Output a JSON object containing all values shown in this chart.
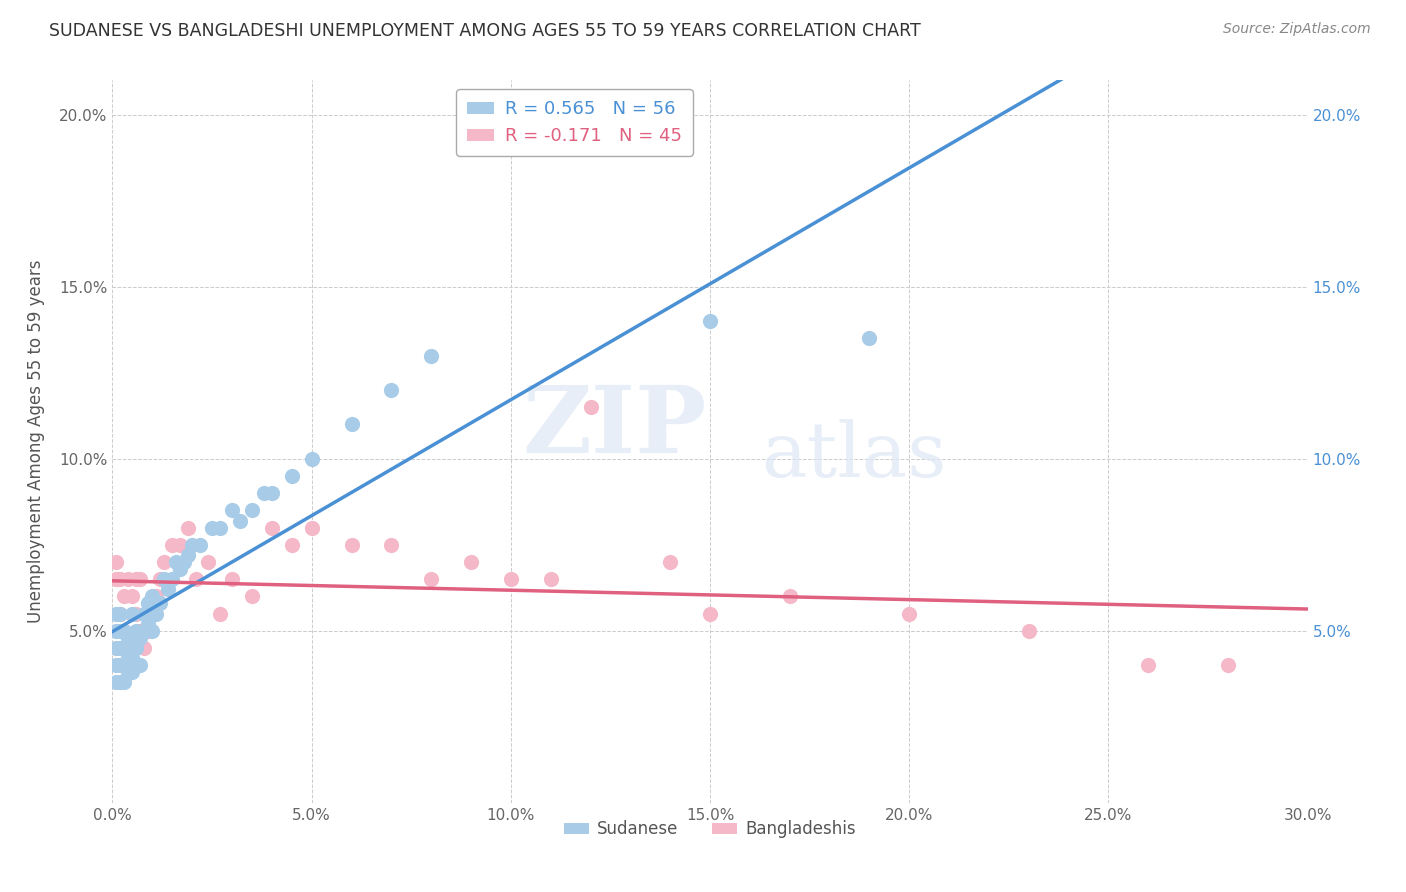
{
  "title": "SUDANESE VS BANGLADESHI UNEMPLOYMENT AMONG AGES 55 TO 59 YEARS CORRELATION CHART",
  "source": "Source: ZipAtlas.com",
  "ylabel": "Unemployment Among Ages 55 to 59 years",
  "xlim": [
    0.0,
    0.3
  ],
  "ylim": [
    0.0,
    0.21
  ],
  "xticks": [
    0.0,
    0.05,
    0.1,
    0.15,
    0.2,
    0.25,
    0.3
  ],
  "yticks": [
    0.0,
    0.05,
    0.1,
    0.15,
    0.2
  ],
  "xtick_labels": [
    "0.0%",
    "5.0%",
    "10.0%",
    "15.0%",
    "20.0%",
    "25.0%",
    "30.0%"
  ],
  "ytick_labels": [
    "",
    "5.0%",
    "10.0%",
    "15.0%",
    "20.0%"
  ],
  "sudanese_color": "#a8cce8",
  "bangladeshi_color": "#f5b8c8",
  "trend_sudanese_color": "#4a90d4",
  "trend_bangladeshi_color": "#e06080",
  "legend_sudanese_label": "Sudanese",
  "legend_bangladeshi_label": "Bangladeshis",
  "r_sudanese": 0.565,
  "n_sudanese": 56,
  "r_bangladeshi": -0.171,
  "n_bangladeshi": 45,
  "watermark_zip": "ZIP",
  "watermark_atlas": "atlas",
  "background_color": "#ffffff",
  "grid_color": "#cccccc",
  "sudanese_x": [
    0.001,
    0.001,
    0.001,
    0.001,
    0.001,
    0.002,
    0.002,
    0.002,
    0.002,
    0.002,
    0.003,
    0.003,
    0.003,
    0.003,
    0.004,
    0.004,
    0.004,
    0.005,
    0.005,
    0.005,
    0.006,
    0.006,
    0.006,
    0.007,
    0.007,
    0.008,
    0.008,
    0.009,
    0.009,
    0.01,
    0.01,
    0.011,
    0.012,
    0.013,
    0.014,
    0.015,
    0.016,
    0.017,
    0.018,
    0.019,
    0.02,
    0.022,
    0.025,
    0.027,
    0.03,
    0.032,
    0.035,
    0.038,
    0.04,
    0.045,
    0.05,
    0.06,
    0.07,
    0.08,
    0.15,
    0.19
  ],
  "sudanese_y": [
    0.035,
    0.04,
    0.045,
    0.05,
    0.055,
    0.035,
    0.04,
    0.045,
    0.05,
    0.055,
    0.035,
    0.04,
    0.045,
    0.05,
    0.038,
    0.042,
    0.048,
    0.038,
    0.042,
    0.055,
    0.04,
    0.045,
    0.05,
    0.04,
    0.048,
    0.05,
    0.055,
    0.052,
    0.058,
    0.05,
    0.06,
    0.055,
    0.058,
    0.065,
    0.062,
    0.065,
    0.07,
    0.068,
    0.07,
    0.072,
    0.075,
    0.075,
    0.08,
    0.08,
    0.085,
    0.082,
    0.085,
    0.09,
    0.09,
    0.095,
    0.1,
    0.11,
    0.12,
    0.13,
    0.14,
    0.135
  ],
  "bangladeshi_x": [
    0.001,
    0.001,
    0.002,
    0.002,
    0.003,
    0.003,
    0.004,
    0.004,
    0.005,
    0.005,
    0.006,
    0.006,
    0.007,
    0.007,
    0.008,
    0.009,
    0.01,
    0.011,
    0.012,
    0.013,
    0.015,
    0.017,
    0.019,
    0.021,
    0.024,
    0.027,
    0.03,
    0.035,
    0.04,
    0.045,
    0.05,
    0.06,
    0.07,
    0.08,
    0.09,
    0.1,
    0.11,
    0.12,
    0.14,
    0.15,
    0.17,
    0.2,
    0.23,
    0.26,
    0.28
  ],
  "bangladeshi_y": [
    0.065,
    0.07,
    0.055,
    0.065,
    0.05,
    0.06,
    0.04,
    0.065,
    0.045,
    0.06,
    0.055,
    0.065,
    0.05,
    0.065,
    0.045,
    0.05,
    0.055,
    0.06,
    0.065,
    0.07,
    0.075,
    0.075,
    0.08,
    0.065,
    0.07,
    0.055,
    0.065,
    0.06,
    0.08,
    0.075,
    0.08,
    0.075,
    0.075,
    0.065,
    0.07,
    0.065,
    0.065,
    0.115,
    0.07,
    0.055,
    0.06,
    0.055,
    0.05,
    0.04,
    0.04
  ]
}
